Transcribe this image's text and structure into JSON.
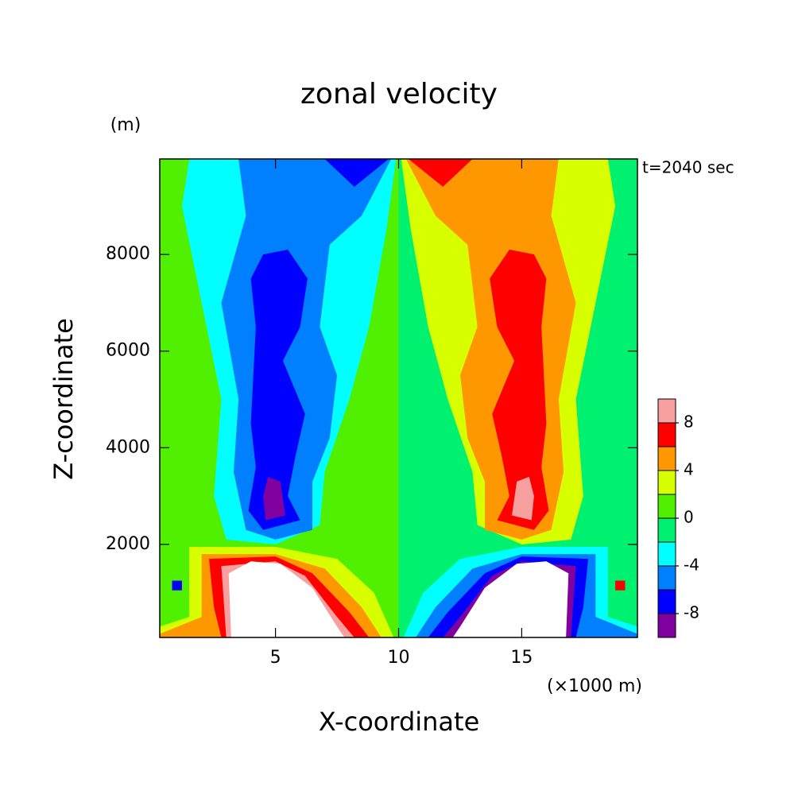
{
  "chart_data": {
    "type": "contour",
    "title": "zonal velocity",
    "xlabel": "X-coordinate",
    "ylabel": "Z-coordinate",
    "x_unit": "(×1000 m)",
    "y_unit": "(m)",
    "annotation": "t=2040 sec",
    "xlim": [
      0.3,
      19.7
    ],
    "xticks": [
      5,
      10,
      15
    ],
    "ylim": [
      75,
      9975
    ],
    "yticks": [
      2000,
      4000,
      6000,
      8000
    ],
    "levels": [
      -10,
      -8,
      -6,
      -4,
      -2,
      0,
      2,
      4,
      6,
      8,
      10
    ],
    "colors": [
      "#8000a0",
      "#0000ff",
      "#0080ff",
      "#00ffff",
      "#00f070",
      "#50f000",
      "#d8ff00",
      "#ff9800",
      "#ff0000",
      "#f8a0a0"
    ],
    "colorbar_ticks": [
      -8,
      -4,
      0,
      4,
      8
    ]
  }
}
